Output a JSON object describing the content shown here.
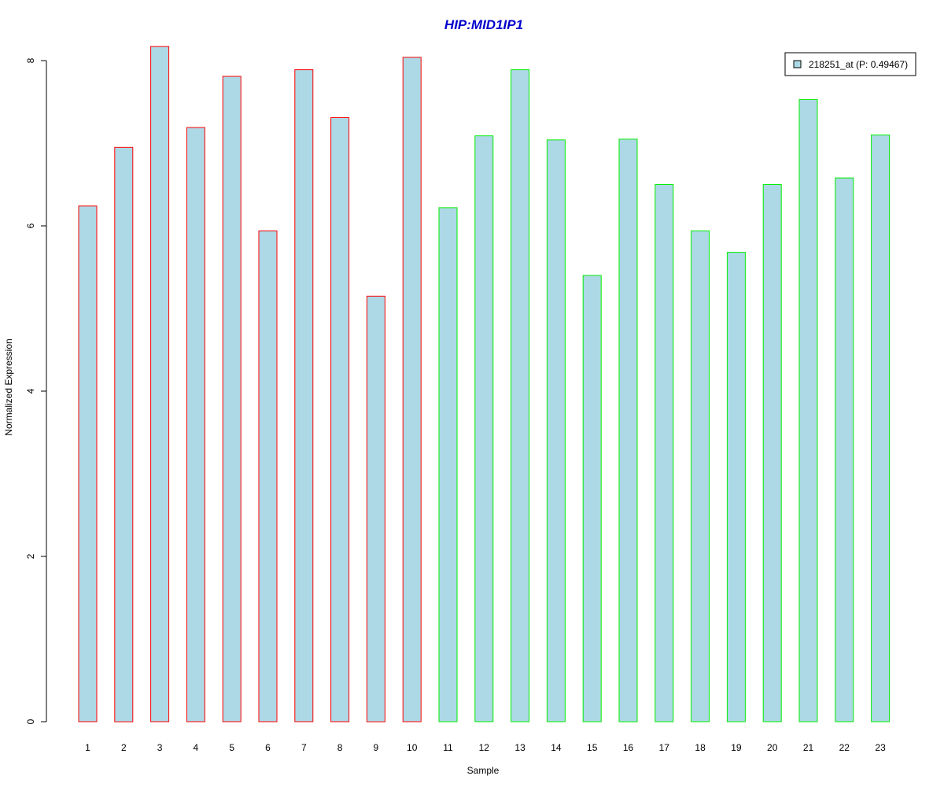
{
  "chart_data": {
    "type": "bar",
    "title": "HIP:MID1IP1",
    "xlabel": "Sample",
    "ylabel": "Normalized Expression",
    "categories": [
      "1",
      "2",
      "3",
      "4",
      "5",
      "6",
      "7",
      "8",
      "9",
      "10",
      "11",
      "12",
      "13",
      "14",
      "15",
      "16",
      "17",
      "18",
      "19",
      "20",
      "21",
      "22",
      "23"
    ],
    "series": [
      {
        "name": "218251_at (P: 0.49467)",
        "values": [
          6.24,
          6.95,
          8.17,
          7.19,
          7.81,
          5.94,
          7.89,
          7.31,
          5.15,
          8.04,
          6.22,
          7.09,
          7.89,
          7.04,
          5.4,
          7.05,
          6.5,
          5.94,
          5.68,
          6.5,
          7.53,
          6.58,
          7.1
        ]
      }
    ],
    "group_colors": [
      "#ff0000",
      "#ff0000",
      "#ff0000",
      "#ff0000",
      "#ff0000",
      "#ff0000",
      "#ff0000",
      "#ff0000",
      "#ff0000",
      "#ff0000",
      "#00ee00",
      "#00ee00",
      "#00ee00",
      "#00ee00",
      "#00ee00",
      "#00ee00",
      "#00ee00",
      "#00ee00",
      "#00ee00",
      "#00ee00",
      "#00ee00",
      "#00ee00",
      "#00ee00"
    ],
    "fill_color": "#add8e6",
    "title_color": "#0000cc",
    "yticks": [
      0,
      2,
      4,
      6,
      8
    ],
    "ylim": [
      0,
      8.17
    ],
    "legend_position": "top-right",
    "grid": false
  }
}
